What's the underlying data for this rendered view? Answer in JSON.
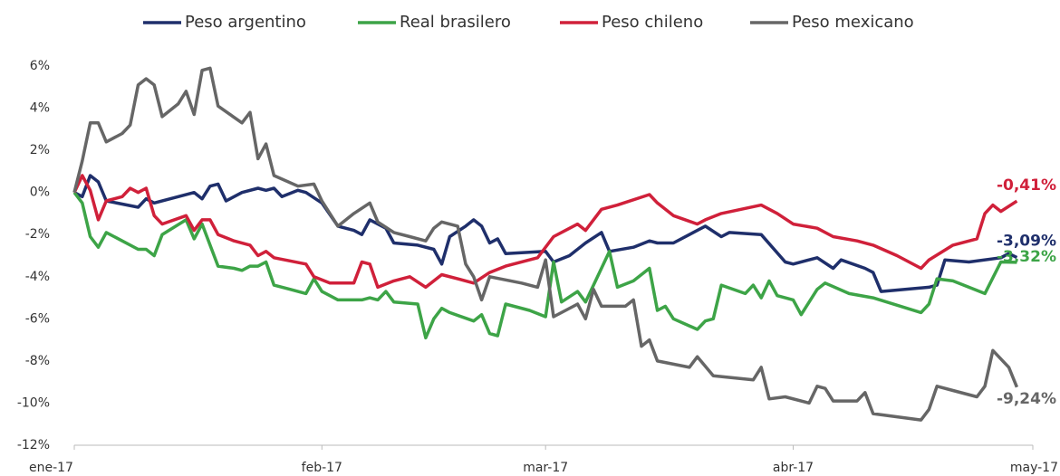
{
  "chart_data": {
    "type": "line",
    "xlim": [
      0,
      120
    ],
    "xticks": [
      {
        "value": 0,
        "label": "ene-17"
      },
      {
        "value": 31,
        "label": "feb-17"
      },
      {
        "value": 59,
        "label": "mar-17"
      },
      {
        "value": 90,
        "label": "abr-17"
      },
      {
        "value": 120,
        "label": "may-17"
      }
    ],
    "ylim": [
      -12,
      6
    ],
    "yticks": [
      {
        "value": -12,
        "label": "-12%"
      },
      {
        "value": -10,
        "label": "-10%"
      },
      {
        "value": -8,
        "label": "-8%"
      },
      {
        "value": -6,
        "label": "-6%"
      },
      {
        "value": -4,
        "label": "-4%"
      },
      {
        "value": -2,
        "label": "-2%"
      },
      {
        "value": 0,
        "label": "0%"
      },
      {
        "value": 2,
        "label": "2%"
      },
      {
        "value": 4,
        "label": "4%"
      },
      {
        "value": 6,
        "label": "6%"
      }
    ],
    "grid": false,
    "legend": "top",
    "series": [
      {
        "name": "Peso argentino",
        "color": "#1f2f6b",
        "end_label": "-3,09%",
        "x": [
          0,
          1,
          2,
          3,
          4,
          8,
          9,
          10,
          15,
          16,
          17,
          18,
          19,
          21,
          23,
          24,
          25,
          26,
          28,
          29,
          31,
          33,
          35,
          36,
          37,
          39,
          40,
          43,
          45,
          46,
          47,
          49,
          50,
          51,
          52,
          53,
          54,
          59,
          60,
          62,
          64,
          66,
          67,
          70,
          72,
          73,
          75,
          79,
          81,
          82,
          86,
          89,
          90,
          93,
          95,
          96,
          99,
          100,
          101,
          107,
          108,
          109,
          112,
          116,
          117,
          118
        ],
        "values": [
          0,
          -0.2,
          0.8,
          0.5,
          -0.4,
          -0.7,
          -0.3,
          -0.5,
          0,
          -0.3,
          0.3,
          0.4,
          -0.4,
          0,
          0.2,
          0.1,
          0.2,
          -0.2,
          0.1,
          0,
          -0.5,
          -1.6,
          -1.8,
          -2.0,
          -1.3,
          -1.7,
          -2.4,
          -2.5,
          -2.7,
          -3.4,
          -2.1,
          -1.6,
          -1.3,
          -1.6,
          -2.4,
          -2.2,
          -2.9,
          -2.8,
          -3.3,
          -3.0,
          -2.4,
          -1.9,
          -2.8,
          -2.6,
          -2.3,
          -2.4,
          -2.4,
          -1.6,
          -2.1,
          -1.9,
          -2.0,
          -3.3,
          -3.4,
          -3.1,
          -3.6,
          -3.2,
          -3.6,
          -3.8,
          -4.7,
          -4.5,
          -4.4,
          -3.2,
          -3.3,
          -3.1,
          -2.9,
          -3.09
        ]
      },
      {
        "name": "Real brasilero",
        "color": "#3da447",
        "end_label": "-3,32%",
        "x": [
          0,
          1,
          2,
          3,
          4,
          6,
          8,
          9,
          10,
          11,
          14,
          15,
          16,
          17,
          18,
          20,
          21,
          22,
          23,
          24,
          25,
          27,
          29,
          30,
          31,
          32,
          33,
          36,
          37,
          38,
          39,
          40,
          43,
          44,
          45,
          46,
          47,
          50,
          51,
          52,
          53,
          54,
          57,
          59,
          60,
          61,
          63,
          64,
          65,
          67,
          68,
          70,
          72,
          73,
          74,
          75,
          78,
          79,
          80,
          81,
          84,
          85,
          86,
          87,
          88,
          90,
          91,
          93,
          94,
          97,
          100,
          106,
          107,
          108,
          110,
          114,
          116,
          118
        ],
        "values": [
          0,
          -0.5,
          -2.1,
          -2.6,
          -1.9,
          -2.3,
          -2.7,
          -2.7,
          -3.0,
          -2.0,
          -1.3,
          -2.2,
          -1.5,
          -2.5,
          -3.5,
          -3.6,
          -3.7,
          -3.5,
          -3.5,
          -3.3,
          -4.4,
          -4.6,
          -4.8,
          -4.1,
          -4.7,
          -4.9,
          -5.1,
          -5.1,
          -5.0,
          -5.1,
          -4.7,
          -5.2,
          -5.3,
          -6.9,
          -6.0,
          -5.5,
          -5.7,
          -6.1,
          -5.8,
          -6.7,
          -6.8,
          -5.3,
          -5.6,
          -5.9,
          -3.3,
          -5.2,
          -4.7,
          -5.2,
          -4.4,
          -2.8,
          -4.5,
          -4.2,
          -3.6,
          -5.6,
          -5.4,
          -6.0,
          -6.5,
          -6.1,
          -6.0,
          -4.4,
          -4.8,
          -4.4,
          -5.0,
          -4.2,
          -4.9,
          -5.1,
          -5.8,
          -4.6,
          -4.3,
          -4.8,
          -5.0,
          -5.7,
          -5.3,
          -4.1,
          -4.2,
          -4.8,
          -3.3,
          -3.32
        ]
      },
      {
        "name": "Peso chileno",
        "color": "#d0203a",
        "end_label": "-0,41%",
        "x": [
          0,
          1,
          2,
          3,
          4,
          6,
          7,
          8,
          9,
          10,
          11,
          14,
          15,
          16,
          17,
          18,
          20,
          22,
          23,
          24,
          25,
          29,
          30,
          32,
          35,
          36,
          37,
          38,
          40,
          42,
          44,
          46,
          48,
          50,
          52,
          54,
          58,
          60,
          63,
          64,
          66,
          68,
          72,
          73,
          75,
          78,
          79,
          81,
          86,
          88,
          90,
          93,
          95,
          98,
          100,
          103,
          106,
          107,
          110,
          113,
          114,
          115,
          116,
          118
        ],
        "values": [
          0,
          0.8,
          0.1,
          -1.3,
          -0.4,
          -0.2,
          0.2,
          0,
          0.2,
          -1.1,
          -1.5,
          -1.1,
          -1.8,
          -1.3,
          -1.3,
          -2.0,
          -2.3,
          -2.5,
          -3.0,
          -2.8,
          -3.1,
          -3.4,
          -4.0,
          -4.3,
          -4.3,
          -3.3,
          -3.4,
          -4.5,
          -4.2,
          -4.0,
          -4.5,
          -3.9,
          -4.1,
          -4.3,
          -3.8,
          -3.5,
          -3.1,
          -2.1,
          -1.5,
          -1.8,
          -0.8,
          -0.6,
          -0.1,
          -0.5,
          -1.1,
          -1.5,
          -1.3,
          -1.0,
          -0.6,
          -1.0,
          -1.5,
          -1.7,
          -2.1,
          -2.3,
          -2.5,
          -3.0,
          -3.6,
          -3.2,
          -2.5,
          -2.2,
          -1.0,
          -0.6,
          -0.9,
          -0.41
        ]
      },
      {
        "name": "Peso mexicano",
        "color": "#666666",
        "end_label": "-9,24%",
        "x": [
          0,
          1,
          2,
          3,
          4,
          6,
          7,
          8,
          9,
          10,
          11,
          13,
          14,
          15,
          16,
          17,
          18,
          21,
          22,
          23,
          24,
          25,
          28,
          30,
          31,
          33,
          35,
          37,
          38,
          40,
          42,
          44,
          45,
          46,
          48,
          49,
          50,
          51,
          52,
          56,
          58,
          59,
          60,
          63,
          64,
          65,
          66,
          69,
          70,
          71,
          72,
          73,
          77,
          78,
          80,
          85,
          86,
          87,
          89,
          92,
          93,
          94,
          95,
          98,
          99,
          100,
          106,
          107,
          108,
          110,
          113,
          114,
          115,
          117,
          118
        ],
        "values": [
          0,
          1.5,
          3.3,
          3.3,
          2.4,
          2.8,
          3.2,
          5.1,
          5.4,
          5.1,
          3.6,
          4.2,
          4.8,
          3.7,
          5.8,
          5.9,
          4.1,
          3.3,
          3.8,
          1.6,
          2.3,
          0.8,
          0.3,
          0.4,
          -0.4,
          -1.6,
          -1.0,
          -0.5,
          -1.4,
          -1.9,
          -2.1,
          -2.3,
          -1.7,
          -1.4,
          -1.6,
          -3.4,
          -4.0,
          -5.1,
          -4.0,
          -4.3,
          -4.5,
          -3.2,
          -5.9,
          -5.3,
          -6.0,
          -4.6,
          -5.4,
          -5.4,
          -5.1,
          -7.3,
          -7.0,
          -8.0,
          -8.3,
          -7.8,
          -8.7,
          -8.9,
          -8.3,
          -9.8,
          -9.7,
          -10.0,
          -9.2,
          -9.3,
          -9.9,
          -9.9,
          -9.5,
          -10.5,
          -10.8,
          -10.3,
          -9.2,
          -9.4,
          -9.7,
          -9.2,
          -7.5,
          -8.3,
          -9.24
        ]
      }
    ]
  }
}
